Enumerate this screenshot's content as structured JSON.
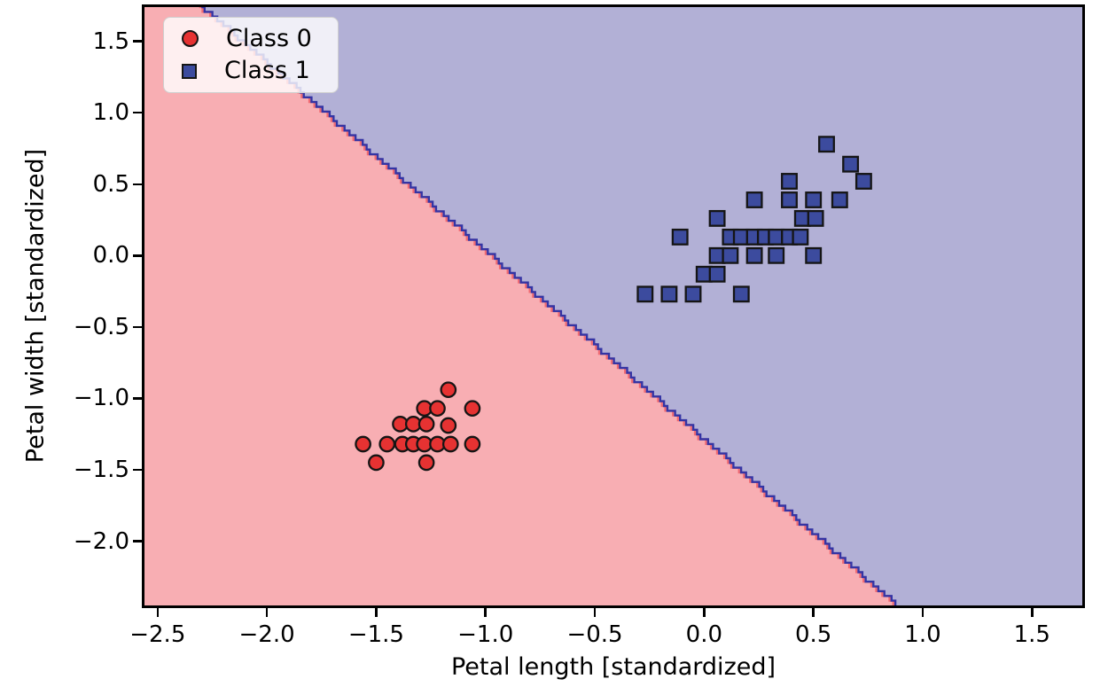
{
  "chart_data": {
    "type": "scatter",
    "title": "",
    "xlabel": "Petal length [standardized]",
    "ylabel": "Petal width [standardized]",
    "xlim": [
      -2.56,
      1.73
    ],
    "ylim": [
      -2.45,
      1.74
    ],
    "grid": false,
    "legend_position": "upper left",
    "xticks": [
      {
        "value": -2.5,
        "label": "−2.5"
      },
      {
        "value": -2.0,
        "label": "−2.0"
      },
      {
        "value": -1.5,
        "label": "−1.5"
      },
      {
        "value": -1.0,
        "label": "−1.0"
      },
      {
        "value": -0.5,
        "label": "−0.5"
      },
      {
        "value": 0.0,
        "label": "0.0"
      },
      {
        "value": 0.5,
        "label": "0.5"
      },
      {
        "value": 1.0,
        "label": "1.0"
      },
      {
        "value": 1.5,
        "label": "1.5"
      }
    ],
    "yticks": [
      {
        "value": 1.5,
        "label": "1.5"
      },
      {
        "value": 1.0,
        "label": "1.0"
      },
      {
        "value": 0.5,
        "label": "0.5"
      },
      {
        "value": 0.0,
        "label": "0.0"
      },
      {
        "value": -0.5,
        "label": "−0.5"
      },
      {
        "value": -1.0,
        "label": "−1.0"
      },
      {
        "value": -1.5,
        "label": "−1.5"
      },
      {
        "value": -2.0,
        "label": "−2.0"
      }
    ],
    "series": [
      {
        "name": "Class 0",
        "marker": "circle",
        "color": "#e63232",
        "edge_color": "#151515",
        "points": [
          [
            -1.17,
            -0.94
          ],
          [
            -1.28,
            -1.07
          ],
          [
            -1.22,
            -1.07
          ],
          [
            -1.06,
            -1.07
          ],
          [
            -1.39,
            -1.18
          ],
          [
            -1.33,
            -1.18
          ],
          [
            -1.27,
            -1.18
          ],
          [
            -1.17,
            -1.19
          ],
          [
            -1.56,
            -1.32
          ],
          [
            -1.45,
            -1.32
          ],
          [
            -1.38,
            -1.32
          ],
          [
            -1.33,
            -1.32
          ],
          [
            -1.28,
            -1.32
          ],
          [
            -1.22,
            -1.32
          ],
          [
            -1.16,
            -1.32
          ],
          [
            -1.06,
            -1.32
          ],
          [
            -1.5,
            -1.45
          ],
          [
            -1.27,
            -1.45
          ]
        ]
      },
      {
        "name": "Class 1",
        "marker": "square",
        "color": "#3c4b9e",
        "edge_color": "#151515",
        "points": [
          [
            0.56,
            0.78
          ],
          [
            0.67,
            0.64
          ],
          [
            0.39,
            0.52
          ],
          [
            0.73,
            0.52
          ],
          [
            0.23,
            0.39
          ],
          [
            0.39,
            0.39
          ],
          [
            0.5,
            0.39
          ],
          [
            0.62,
            0.39
          ],
          [
            0.06,
            0.26
          ],
          [
            0.45,
            0.26
          ],
          [
            0.51,
            0.26
          ],
          [
            -0.11,
            0.13
          ],
          [
            0.12,
            0.13
          ],
          [
            0.17,
            0.13
          ],
          [
            0.23,
            0.13
          ],
          [
            0.28,
            0.13
          ],
          [
            0.33,
            0.13
          ],
          [
            0.39,
            0.13
          ],
          [
            0.44,
            0.13
          ],
          [
            0.06,
            0.0
          ],
          [
            0.12,
            0.0
          ],
          [
            0.23,
            0.0
          ],
          [
            0.33,
            0.0
          ],
          [
            0.5,
            0.0
          ],
          [
            0.0,
            -0.13
          ],
          [
            0.06,
            -0.13
          ],
          [
            -0.27,
            -0.27
          ],
          [
            -0.16,
            -0.27
          ],
          [
            -0.05,
            -0.27
          ],
          [
            0.17,
            -0.27
          ]
        ]
      }
    ],
    "decision_regions": {
      "class0_region_color": "#f8aeb3",
      "class1_region_color": "#b2b0d6",
      "boundary_line": [
        [
          -2.3,
          1.74
        ],
        [
          0.875,
          -2.45
        ]
      ],
      "boundary_edge_color_class1": "#3434a4",
      "boundary_edge_color_class0": "#ef6a72"
    }
  }
}
